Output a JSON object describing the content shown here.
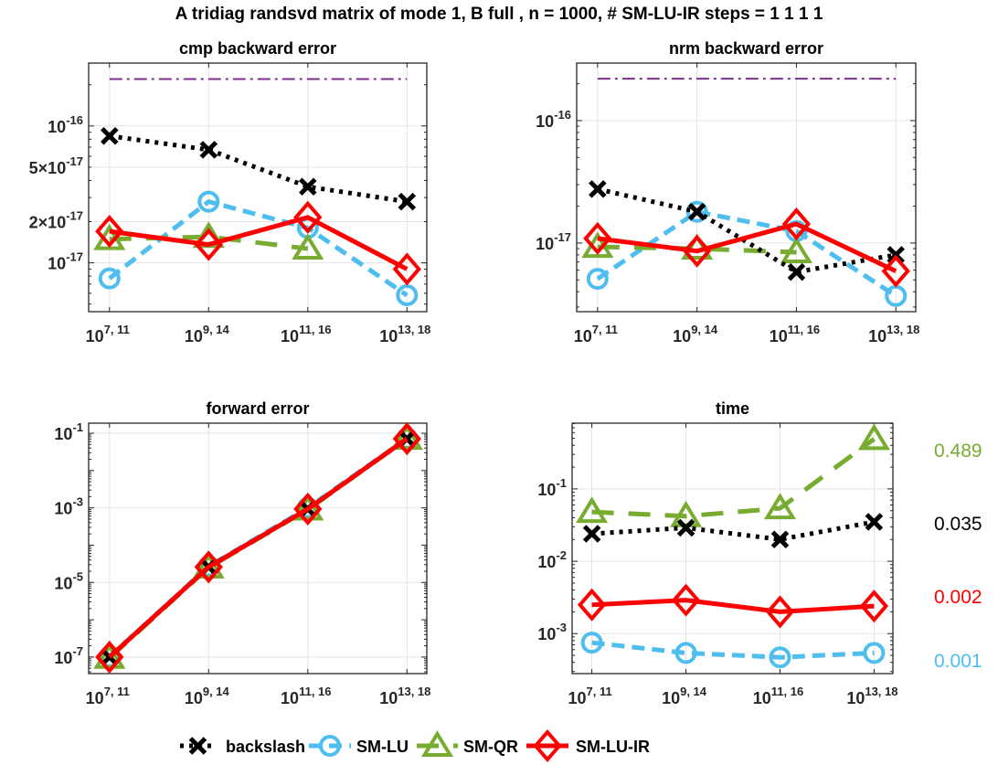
{
  "figure_title": "A tridiag randsvd matrix of mode 1, B full , n = 1000, # SM-LU-IR steps = 1 1 1 1",
  "series_styles": {
    "backslash": {
      "color": "#000000",
      "marker": "x",
      "line": "dotted"
    },
    "SM-LU": {
      "color": "#4DBEEE",
      "marker": "o",
      "line": "dashed"
    },
    "SM-QR": {
      "color": "#77AC30",
      "marker": "triangle",
      "line": "dashed-long"
    },
    "SM-LU-IR": {
      "color": "#FF0000",
      "marker": "diamond",
      "line": "solid"
    },
    "reference": {
      "color": "#7E2F8E",
      "line": "dash-dot"
    }
  },
  "legend": {
    "placement": "bottom-center",
    "items": [
      "backslash",
      "SM-LU",
      "SM-QR",
      "SM-LU-IR"
    ]
  },
  "chart_data": [
    {
      "type": "line",
      "title": "cmp backward error",
      "xscale": "categorical",
      "yscale": "log",
      "categories": [
        {
          "base": "10",
          "exp": "7, 11"
        },
        {
          "base": "10",
          "exp": "9, 14"
        },
        {
          "base": "10",
          "exp": "11, 16"
        },
        {
          "base": "10",
          "exp": "13, 18"
        }
      ],
      "ylim": [
        4.4e-18,
        2.88e-16
      ],
      "yticks": [
        {
          "v": 1e-16,
          "base": "10",
          "exp": "-16"
        },
        {
          "v": 5e-17,
          "base": "5×10",
          "exp": "-17"
        },
        {
          "v": 2e-17,
          "base": "2×10",
          "exp": "-17"
        },
        {
          "v": 1e-17,
          "base": "10",
          "exp": "-17"
        }
      ],
      "grid": true,
      "reference_line": 2.2e-16,
      "series": [
        {
          "name": "backslash",
          "values": [
            8.45e-17,
            6.7e-17,
            3.6e-17,
            2.8e-17
          ]
        },
        {
          "name": "SM-LU",
          "values": [
            7.7e-18,
            2.8e-17,
            1.8e-17,
            5.8e-18
          ]
        },
        {
          "name": "SM-QR",
          "values": [
            1.49e-17,
            1.55e-17,
            1.27e-17,
            null
          ]
        },
        {
          "name": "SM-LU-IR",
          "values": [
            1.7e-17,
            1.36e-17,
            2.15e-17,
            9e-18
          ]
        }
      ]
    },
    {
      "type": "line",
      "title": "nrm backward error",
      "xscale": "categorical",
      "yscale": "log",
      "categories": [
        {
          "base": "10",
          "exp": "7, 11"
        },
        {
          "base": "10",
          "exp": "9, 14"
        },
        {
          "base": "10",
          "exp": "11, 16"
        },
        {
          "base": "10",
          "exp": "13, 18"
        }
      ],
      "ylim": [
        2.75e-18,
        2.95e-16
      ],
      "yticks": [
        {
          "v": 1e-16,
          "base": "10",
          "exp": "-16"
        },
        {
          "v": 1e-17,
          "base": "10",
          "exp": "-17"
        }
      ],
      "grid": true,
      "reference_line": 2.2e-16,
      "series": [
        {
          "name": "backslash",
          "values": [
            2.76e-17,
            1.8e-17,
            5.8e-18,
            8e-18
          ]
        },
        {
          "name": "SM-LU",
          "values": [
            5.1e-18,
            1.8e-17,
            1.25e-17,
            3.7e-18
          ]
        },
        {
          "name": "SM-QR",
          "values": [
            9.3e-18,
            9e-18,
            8.4e-18,
            null
          ]
        },
        {
          "name": "SM-LU-IR",
          "values": [
            1.09e-17,
            8.6e-18,
            1.43e-17,
            5.9e-18
          ]
        }
      ]
    },
    {
      "type": "line",
      "title": "forward error",
      "xscale": "categorical",
      "yscale": "log",
      "categories": [
        {
          "base": "10",
          "exp": "7, 11"
        },
        {
          "base": "10",
          "exp": "9, 14"
        },
        {
          "base": "10",
          "exp": "11, 16"
        },
        {
          "base": "10",
          "exp": "13, 18"
        }
      ],
      "ylim": [
        3.6e-08,
        0.186
      ],
      "yticks": [
        {
          "v": 0.1,
          "base": "10",
          "exp": "-1"
        },
        {
          "v": 0.001,
          "base": "10",
          "exp": "-3"
        },
        {
          "v": 1e-05,
          "base": "10",
          "exp": "-5"
        },
        {
          "v": 1e-07,
          "base": "10",
          "exp": "-7"
        }
      ],
      "grid": true,
      "series": [
        {
          "name": "backslash",
          "values": [
            1e-07,
            2.6e-05,
            0.00093,
            0.071
          ]
        },
        {
          "name": "SM-LU",
          "values": [
            1e-07,
            2.7e-05,
            0.001,
            0.072
          ]
        },
        {
          "name": "SM-QR",
          "values": [
            9.5e-08,
            2.5e-05,
            0.0009,
            0.071
          ]
        },
        {
          "name": "SM-LU-IR",
          "values": [
            1e-07,
            2.6e-05,
            0.00093,
            0.071
          ]
        }
      ]
    },
    {
      "type": "line",
      "title": "time",
      "xscale": "categorical",
      "yscale": "log",
      "categories": [
        {
          "base": "10",
          "exp": "7, 11"
        },
        {
          "base": "10",
          "exp": "9, 14"
        },
        {
          "base": "10",
          "exp": "11, 16"
        },
        {
          "base": "10",
          "exp": "13, 18"
        }
      ],
      "ylim": [
        0.00028,
        0.81
      ],
      "yticks": [
        {
          "v": 0.1,
          "base": "10",
          "exp": "-1"
        },
        {
          "v": 0.01,
          "base": "10",
          "exp": "-2"
        },
        {
          "v": 0.001,
          "base": "10",
          "exp": "-3"
        }
      ],
      "grid": true,
      "series": [
        {
          "name": "backslash",
          "values": [
            0.024,
            0.029,
            0.02,
            0.035
          ]
        },
        {
          "name": "SM-LU",
          "values": [
            0.00075,
            0.00054,
            0.00047,
            0.00054
          ]
        },
        {
          "name": "SM-QR",
          "values": [
            0.048,
            0.042,
            0.054,
            0.489
          ]
        },
        {
          "name": "SM-LU-IR",
          "values": [
            0.0025,
            0.0029,
            0.002,
            0.0024
          ]
        }
      ],
      "annotations": [
        {
          "text": "0.489",
          "series": "SM-QR"
        },
        {
          "text": "0.035",
          "series": "backslash"
        },
        {
          "text": "0.002",
          "series": "SM-LU-IR"
        },
        {
          "text": "0.001",
          "series": "SM-LU"
        }
      ]
    }
  ]
}
